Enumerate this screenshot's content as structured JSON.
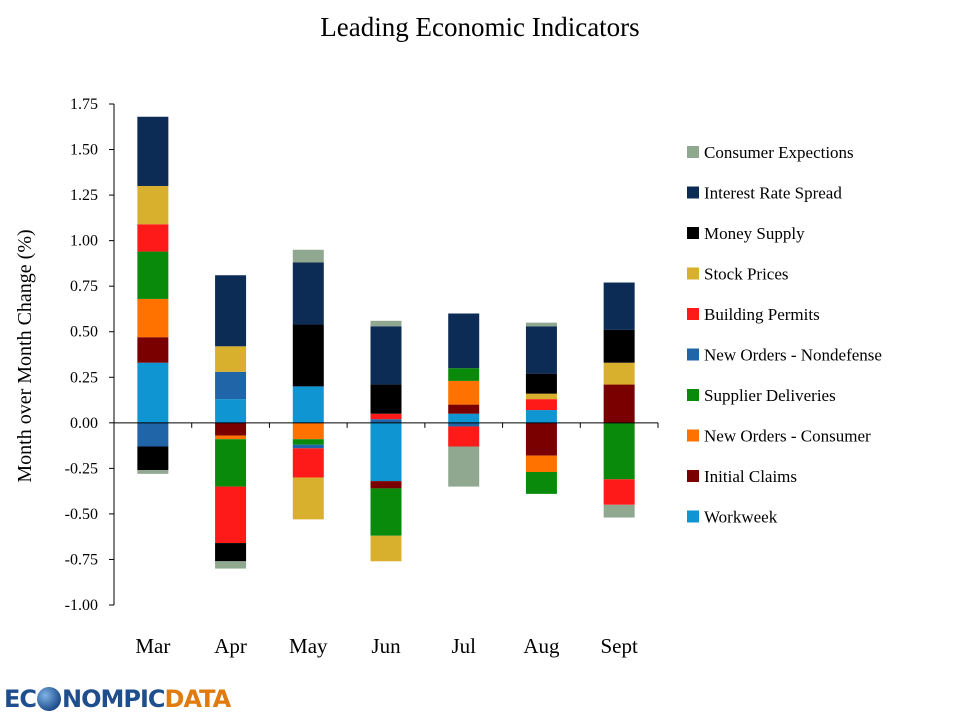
{
  "chart_data": {
    "type": "bar",
    "stacked": true,
    "title": "Leading Economic Indicators",
    "ylabel": "Month over Month Change (%)",
    "xlabel": "",
    "ylim": [
      -1.0,
      1.75
    ],
    "yticks": [
      "1.75",
      "1.50",
      "1.25",
      "1.00",
      "0.75",
      "0.50",
      "0.25",
      "0.00",
      "-0.25",
      "-0.50",
      "-0.75",
      "-1.00"
    ],
    "ytick_values": [
      1.75,
      1.5,
      1.25,
      1.0,
      0.75,
      0.5,
      0.25,
      0.0,
      -0.25,
      -0.5,
      -0.75,
      -1.0
    ],
    "categories": [
      "Mar",
      "Apr",
      "May",
      "Jun",
      "Jul",
      "Aug",
      "Sept"
    ],
    "legend_position": "right",
    "series": [
      {
        "name": "Workweek",
        "color": "#0f96d2",
        "values": [
          0.33,
          0.13,
          0.2,
          -0.32,
          0.05,
          0.07,
          0.0
        ]
      },
      {
        "name": "Initial Claims",
        "color": "#7a0000",
        "values": [
          0.14,
          -0.07,
          0.0,
          -0.04,
          0.05,
          -0.18,
          0.21
        ]
      },
      {
        "name": "New Orders - Consumer",
        "color": "#ff7200",
        "values": [
          0.21,
          -0.02,
          -0.09,
          0.0,
          0.13,
          -0.09,
          0.0
        ]
      },
      {
        "name": "Supplier Deliveries",
        "color": "#0a8a0a",
        "values": [
          0.26,
          -0.26,
          -0.03,
          -0.26,
          0.07,
          -0.12,
          -0.31
        ]
      },
      {
        "name": "New Orders - Nondefense",
        "color": "#1f65a8",
        "values": [
          -0.13,
          0.15,
          -0.02,
          0.02,
          -0.02,
          0.0,
          0.0
        ]
      },
      {
        "name": "Building Permits",
        "color": "#ff1a1a",
        "values": [
          0.15,
          -0.31,
          -0.16,
          0.03,
          -0.11,
          0.06,
          -0.14
        ]
      },
      {
        "name": "Stock Prices",
        "color": "#d9b02d",
        "values": [
          0.21,
          0.14,
          -0.23,
          -0.14,
          0.0,
          0.03,
          0.12
        ]
      },
      {
        "name": "Money Supply",
        "color": "#000000",
        "values": [
          -0.13,
          -0.1,
          0.34,
          0.16,
          0.0,
          0.11,
          0.18
        ]
      },
      {
        "name": "Interest Rate Spread",
        "color": "#0c2b55",
        "values": [
          0.38,
          0.39,
          0.34,
          0.32,
          0.3,
          0.26,
          0.26
        ]
      },
      {
        "name": "Consumer Expections",
        "color": "#90a890",
        "values": [
          -0.02,
          -0.04,
          0.07,
          0.03,
          -0.22,
          0.02,
          -0.07
        ]
      }
    ]
  },
  "logo": {
    "part1": "EC",
    "part2": "NOMPIC",
    "part3": "DATA"
  }
}
